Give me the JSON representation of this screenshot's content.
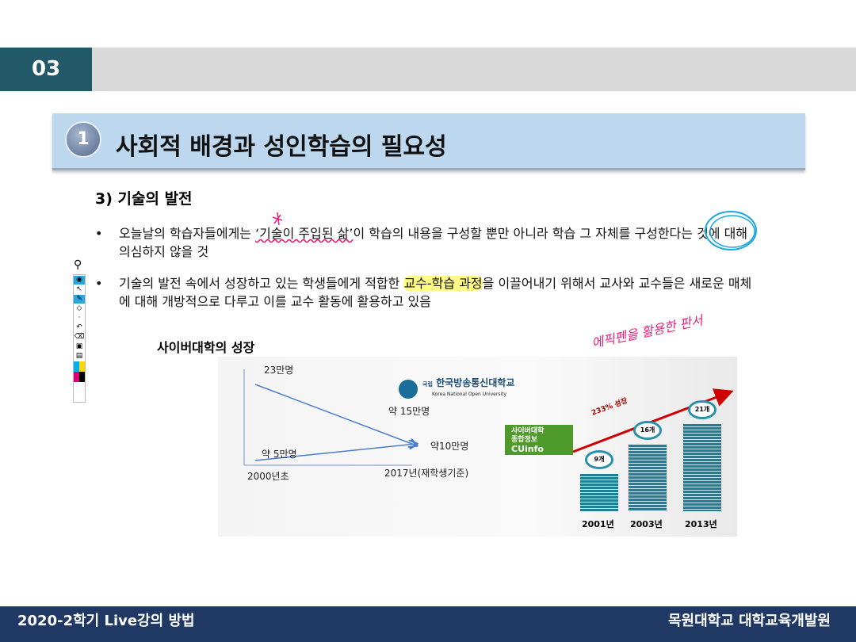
{
  "header": {
    "section_number": "03"
  },
  "slide": {
    "badge": "1",
    "title": "사회적 배경과 성인학습의 필요성",
    "subheading": "3) 기술의 발전",
    "bullets": [
      {
        "before": "오늘날의 학습자들에게는 ",
        "mark": "‘기술이 주입된 삶’",
        "after": "이 학습의 내용을 구성할 뿐만 아니라 학습 그 자체를 구성한다는 것에 대해 의심하지 않을 것"
      },
      {
        "before": "기술의 발전 속에서 성장하고 있는 학생들에게 적합한 ",
        "mark": "교수-학습 과정",
        "after": "을 이끌어내기 위해서 교사와 교수들은 새로운 매체에 대해 개방적으로 다루고 이를 교수 활동에 활용하고 있음"
      }
    ],
    "bullet_symbol": "•"
  },
  "figure": {
    "label": "사이버대학의 성장",
    "left": {
      "top_value": "23만명",
      "val_15": "약 15만명",
      "val_5": "약 5만명",
      "val_10": "약10만명",
      "x_start": "2000년초",
      "x_end": "2017년(재학생기준)",
      "logo_name": "한국방송통신대학교",
      "logo_sub": "Korea National Open University",
      "logo_prefix": "국립"
    },
    "right": {
      "source_box": [
        "사이버대학",
        "종합정보",
        "CUinfo"
      ],
      "growth": "233% 성장",
      "bars": [
        {
          "year": "2001년",
          "count": "9개",
          "value": 9
        },
        {
          "year": "2003년",
          "count": "16개",
          "value": 16
        },
        {
          "year": "2013년",
          "count": "21개",
          "value": 21
        }
      ]
    }
  },
  "annotation": {
    "handwriting": "에픽펜을 활용한 판서",
    "pen_color": "#e8207a",
    "circle_color": "#1aa7e0"
  },
  "toolbar": {
    "icons": [
      "pen-logo-icon",
      "eye-icon",
      "cursor-icon",
      "pen-icon",
      "eraser-icon",
      "dot-icon",
      "undo-icon",
      "trash-icon",
      "camera-icon",
      "clipboard-icon",
      "color-palette-icon"
    ]
  },
  "footer": {
    "left": "2020-2학기 Live강의 방법",
    "right": "목원대학교 대학교육개발원"
  }
}
